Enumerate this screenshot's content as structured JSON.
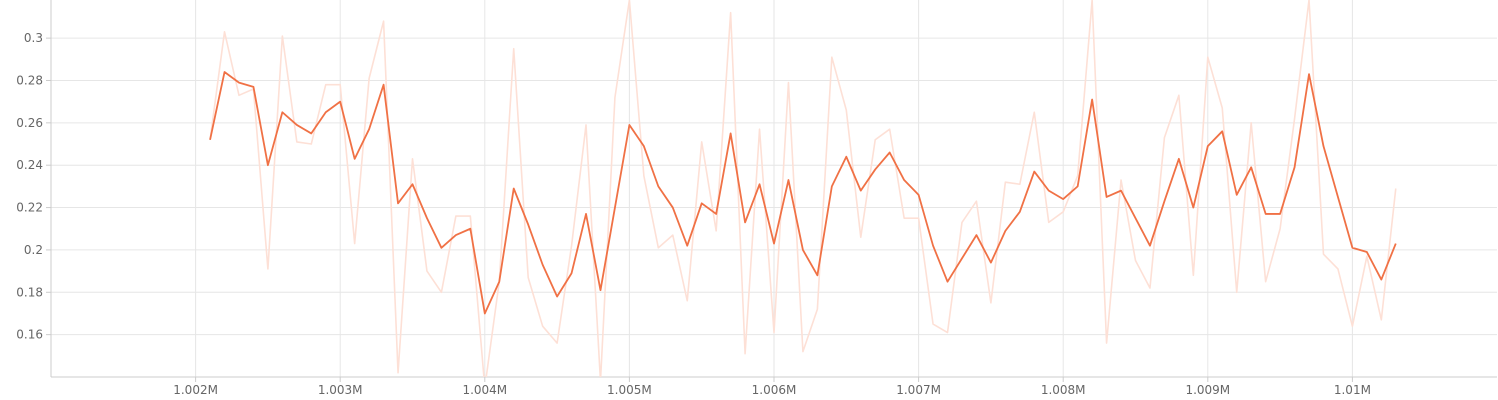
{
  "chart_data": {
    "type": "line",
    "grid": true,
    "colors": {
      "smoothed": "#f07145",
      "raw": "#fde0d6",
      "grid": "#e6e6e6",
      "axis": "#cccccc",
      "text": "#666666"
    },
    "xlim": [
      1001000,
      1011000
    ],
    "ylim": [
      0.14,
      0.318
    ],
    "x_ticks": [
      1002000,
      1003000,
      1004000,
      1005000,
      1006000,
      1007000,
      1008000,
      1009000,
      1010000
    ],
    "x_tick_labels": [
      "1.002M",
      "1.003M",
      "1.004M",
      "1.005M",
      "1.006M",
      "1.007M",
      "1.008M",
      "1.009M",
      "1.01M"
    ],
    "y_ticks": [
      0.16,
      0.18,
      0.2,
      0.22,
      0.24,
      0.26,
      0.28,
      0.3
    ],
    "y_tick_labels": [
      "0.16",
      "0.18",
      "0.2",
      "0.22",
      "0.24",
      "0.26",
      "0.28",
      "0.3"
    ],
    "x_start": 1002100,
    "x_step": 100,
    "series": [
      {
        "role": "raw",
        "values": [
          0.252,
          0.303,
          0.273,
          0.276,
          0.191,
          0.301,
          0.251,
          0.25,
          0.278,
          0.278,
          0.203,
          0.281,
          0.308,
          0.142,
          0.243,
          0.19,
          0.18,
          0.216,
          0.216,
          0.135,
          0.185,
          0.295,
          0.187,
          0.164,
          0.156,
          0.202,
          0.259,
          0.138,
          0.272,
          0.318,
          0.235,
          0.201,
          0.207,
          0.176,
          0.251,
          0.209,
          0.312,
          0.151,
          0.257,
          0.161,
          0.279,
          0.152,
          0.172,
          0.291,
          0.266,
          0.206,
          0.252,
          0.257,
          0.215,
          0.215,
          0.165,
          0.161,
          0.213,
          0.223,
          0.175,
          0.232,
          0.231,
          0.265,
          0.213,
          0.218,
          0.235,
          0.318,
          0.156,
          0.233,
          0.195,
          0.182,
          0.253,
          0.273,
          0.188,
          0.291,
          0.267,
          0.18,
          0.26,
          0.185,
          0.21,
          0.262,
          0.318,
          0.198,
          0.191,
          0.164,
          0.197,
          0.167,
          0.229
        ]
      },
      {
        "role": "smoothed",
        "values": [
          0.252,
          0.284,
          0.279,
          0.277,
          0.24,
          0.265,
          0.259,
          0.255,
          0.265,
          0.27,
          0.243,
          0.257,
          0.278,
          0.222,
          0.231,
          0.215,
          0.201,
          0.207,
          0.21,
          0.17,
          0.185,
          0.229,
          0.212,
          0.193,
          0.178,
          0.189,
          0.217,
          0.181,
          0.22,
          0.259,
          0.249,
          0.23,
          0.22,
          0.202,
          0.222,
          0.217,
          0.255,
          0.213,
          0.231,
          0.203,
          0.233,
          0.2,
          0.188,
          0.23,
          0.244,
          0.228,
          0.238,
          0.246,
          0.233,
          0.226,
          0.202,
          0.185,
          0.196,
          0.207,
          0.194,
          0.209,
          0.218,
          0.237,
          0.228,
          0.224,
          0.23,
          0.271,
          0.225,
          0.228,
          0.215,
          0.202,
          0.223,
          0.243,
          0.22,
          0.249,
          0.256,
          0.226,
          0.239,
          0.217,
          0.217,
          0.239,
          0.283,
          0.249,
          0.225,
          0.201,
          0.199,
          0.186,
          0.203
        ]
      }
    ]
  }
}
